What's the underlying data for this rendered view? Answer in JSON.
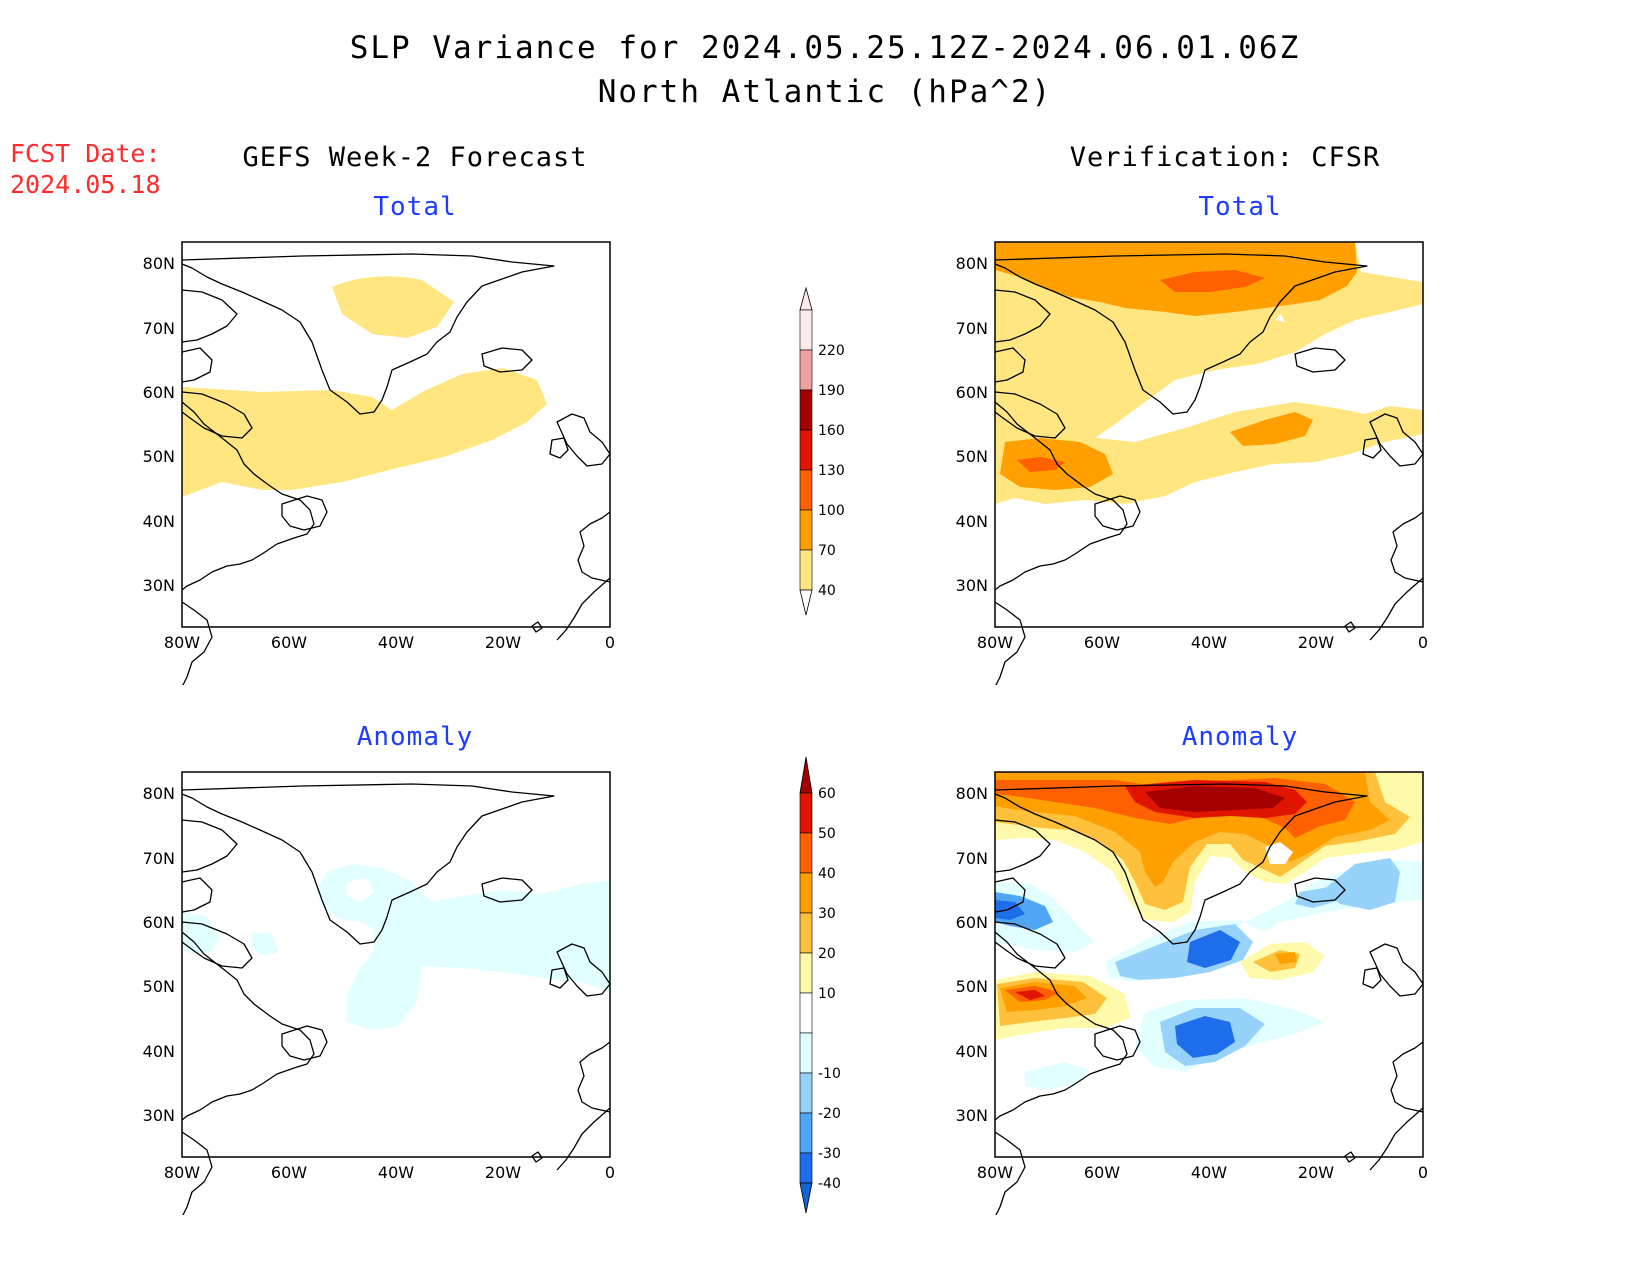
{
  "title": {
    "line1": "SLP Variance for 2024.05.25.12Z-2024.06.01.06Z",
    "line2": "North Atlantic (hPa^2)"
  },
  "forecast_date": {
    "label": "FCST Date:",
    "value": "2024.05.18"
  },
  "columns": {
    "left": "GEFS Week-2 Forecast",
    "right": "Verification: CFSR"
  },
  "panels": {
    "top_left": "Total",
    "top_right": "Total",
    "bottom_left": "Anomaly",
    "bottom_right": "Anomaly"
  },
  "map": {
    "lon_range": [
      -80,
      0
    ],
    "lat_range": [
      25,
      85
    ],
    "lon_ticks": [
      "80W",
      "60W",
      "40W",
      "20W",
      "0"
    ],
    "lat_ticks": [
      "80N",
      "70N",
      "60N",
      "50N",
      "40N",
      "30N"
    ]
  },
  "colorbars": {
    "total": {
      "labels": [
        "40",
        "70",
        "100",
        "130",
        "160",
        "190",
        "220"
      ],
      "colors": [
        "#ffe680",
        "#ffa000",
        "#ff6000",
        "#e11400",
        "#a50000",
        "#f0a0a0",
        "#fdeaea"
      ]
    },
    "anomaly": {
      "labels": [
        "-40",
        "-30",
        "-20",
        "-10",
        "10",
        "20",
        "30",
        "40",
        "50",
        "60"
      ],
      "colors": [
        "#1464d2",
        "#1e6eeb",
        "#50a5f5",
        "#96d2fa",
        "#e1ffff",
        "#ffffff",
        "#fffaaa",
        "#ffc03c",
        "#ffa000",
        "#ff6000",
        "#e11400",
        "#a50000"
      ]
    }
  },
  "field_colors": {
    "yellow": "#ffe680",
    "orange": "#ffa000",
    "dark_orange": "#ff6000",
    "red": "#e11400",
    "dark_red": "#a50000",
    "pale_yellow": "#fffaaa",
    "light_orange": "#ffc03c",
    "lightest_blue": "#e1ffff",
    "light_blue": "#96d2fa",
    "mid_blue": "#50a5f5",
    "blue": "#1e6eeb"
  }
}
